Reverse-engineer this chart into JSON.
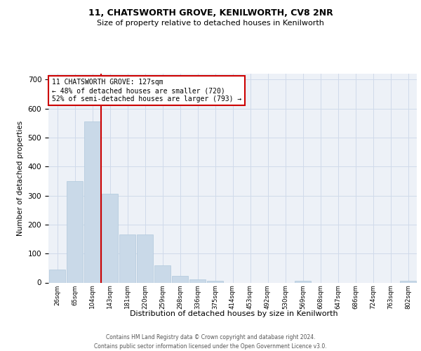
{
  "title1": "11, CHATSWORTH GROVE, KENILWORTH, CV8 2NR",
  "title2": "Size of property relative to detached houses in Kenilworth",
  "xlabel": "Distribution of detached houses by size in Kenilworth",
  "ylabel": "Number of detached properties",
  "categories": [
    "26sqm",
    "65sqm",
    "104sqm",
    "143sqm",
    "181sqm",
    "220sqm",
    "259sqm",
    "298sqm",
    "336sqm",
    "375sqm",
    "414sqm",
    "453sqm",
    "492sqm",
    "530sqm",
    "569sqm",
    "608sqm",
    "647sqm",
    "686sqm",
    "724sqm",
    "763sqm",
    "802sqm"
  ],
  "values": [
    45,
    350,
    555,
    305,
    165,
    165,
    60,
    22,
    10,
    5,
    0,
    0,
    0,
    0,
    7,
    0,
    0,
    0,
    0,
    0,
    5
  ],
  "bar_color": "#c9d9e8",
  "bar_edge_color": "#b0c8dc",
  "vline_color": "#cc0000",
  "annotation_text": "11 CHATSWORTH GROVE: 127sqm\n← 48% of detached houses are smaller (720)\n52% of semi-detached houses are larger (793) →",
  "annotation_box_color": "white",
  "annotation_box_edge": "#cc0000",
  "ylim": [
    0,
    720
  ],
  "yticks": [
    0,
    100,
    200,
    300,
    400,
    500,
    600,
    700
  ],
  "footer1": "Contains HM Land Registry data © Crown copyright and database right 2024.",
  "footer2": "Contains public sector information licensed under the Open Government Licence v3.0.",
  "bg_color": "#edf1f7",
  "grid_color": "#d0daea"
}
